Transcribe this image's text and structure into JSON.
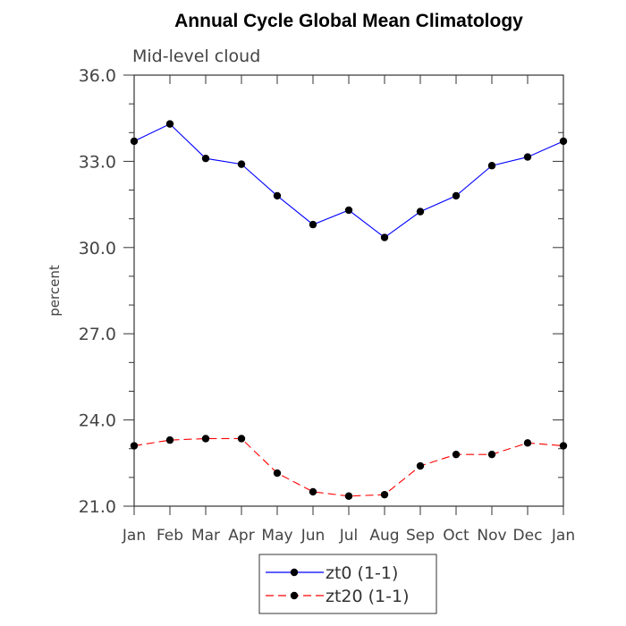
{
  "chart_data": {
    "type": "line",
    "title": "Annual Cycle Global Mean Climatology",
    "subtitle": "Mid-level cloud",
    "xlabel": "",
    "ylabel": "percent",
    "categories": [
      "Jan",
      "Feb",
      "Mar",
      "Apr",
      "May",
      "Jun",
      "Jul",
      "Aug",
      "Sep",
      "Oct",
      "Nov",
      "Dec",
      "Jan"
    ],
    "ylim": [
      21.0,
      36.0
    ],
    "yticks": [
      "21.0",
      "24.0",
      "27.0",
      "30.0",
      "33.0",
      "36.0"
    ],
    "grid": false,
    "legend_position": "bottom-center",
    "series": [
      {
        "name": "zt0 (1-1)",
        "color": "#0000ff",
        "line_style": "solid",
        "marker": "filled-circle",
        "values": [
          33.7,
          34.3,
          33.1,
          32.9,
          31.8,
          30.8,
          31.3,
          30.35,
          31.25,
          31.8,
          32.85,
          33.15,
          33.7
        ]
      },
      {
        "name": "zt20 (1-1)",
        "color": "#ff0000",
        "line_style": "dashed",
        "marker": "filled-circle",
        "values": [
          23.1,
          23.3,
          23.35,
          23.35,
          22.15,
          21.5,
          21.35,
          21.4,
          22.4,
          22.8,
          22.8,
          23.2,
          23.1
        ]
      }
    ]
  }
}
